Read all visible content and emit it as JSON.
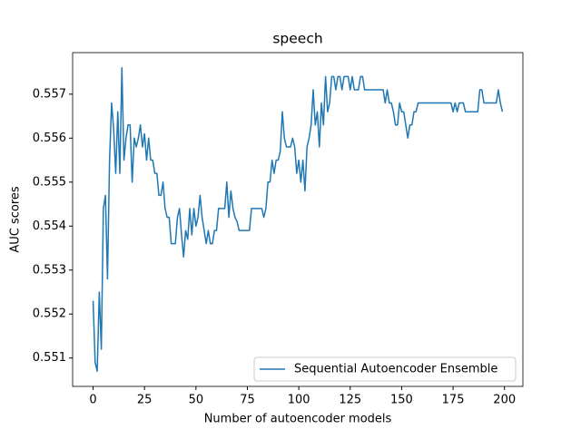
{
  "chart_data": {
    "type": "line",
    "title": "speech",
    "x_label": "Number of autoencoder models",
    "y_label": "AUC scores",
    "x": [
      0,
      1,
      2,
      3,
      4,
      5,
      6,
      7,
      8,
      9,
      10,
      11,
      12,
      13,
      14,
      15,
      16,
      17,
      18,
      19,
      20,
      21,
      22,
      23,
      24,
      25,
      26,
      27,
      28,
      29,
      30,
      31,
      32,
      33,
      34,
      35,
      36,
      37,
      38,
      39,
      40,
      41,
      42,
      43,
      44,
      45,
      46,
      47,
      48,
      49,
      50,
      51,
      52,
      53,
      54,
      55,
      56,
      57,
      58,
      59,
      60,
      61,
      62,
      63,
      64,
      65,
      66,
      67,
      68,
      69,
      70,
      71,
      72,
      73,
      74,
      75,
      76,
      77,
      78,
      79,
      80,
      81,
      82,
      83,
      84,
      85,
      86,
      87,
      88,
      89,
      90,
      91,
      92,
      93,
      94,
      95,
      96,
      97,
      98,
      99,
      100,
      101,
      102,
      103,
      104,
      105,
      106,
      107,
      108,
      109,
      110,
      111,
      112,
      113,
      114,
      115,
      116,
      117,
      118,
      119,
      120,
      121,
      122,
      123,
      124,
      125,
      126,
      127,
      128,
      129,
      130,
      131,
      132,
      133,
      134,
      135,
      136,
      137,
      138,
      139,
      140,
      141,
      142,
      143,
      144,
      145,
      146,
      147,
      148,
      149,
      150,
      151,
      152,
      153,
      154,
      155,
      156,
      157,
      158,
      159,
      160,
      161,
      162,
      163,
      164,
      165,
      166,
      167,
      168,
      169,
      170,
      171,
      172,
      173,
      174,
      175,
      176,
      177,
      178,
      179,
      180,
      181,
      182,
      183,
      184,
      185,
      186,
      187,
      188,
      189,
      190,
      191,
      192,
      193,
      194,
      195,
      196,
      197,
      198,
      199
    ],
    "series": [
      {
        "name": "Sequential Autoencoder Ensemble",
        "color": "#1f77b4",
        "values": [
          0.5523,
          0.5509,
          0.5507,
          0.5525,
          0.5512,
          0.5544,
          0.5547,
          0.5528,
          0.5555,
          0.5568,
          0.5562,
          0.5552,
          0.5566,
          0.5552,
          0.5576,
          0.5555,
          0.556,
          0.5563,
          0.5563,
          0.555,
          0.556,
          0.5558,
          0.556,
          0.5563,
          0.5558,
          0.5561,
          0.5555,
          0.556,
          0.5555,
          0.5555,
          0.5552,
          0.5552,
          0.5547,
          0.5547,
          0.555,
          0.5544,
          0.5542,
          0.5542,
          0.5536,
          0.5536,
          0.5536,
          0.5542,
          0.5544,
          0.5538,
          0.5533,
          0.5539,
          0.5537,
          0.5544,
          0.5538,
          0.5544,
          0.554,
          0.5542,
          0.5547,
          0.5542,
          0.5539,
          0.5536,
          0.5539,
          0.5536,
          0.5536,
          0.5539,
          0.5539,
          0.5544,
          0.5544,
          0.5544,
          0.5544,
          0.555,
          0.5542,
          0.5548,
          0.5544,
          0.5542,
          0.5541,
          0.5539,
          0.5539,
          0.5539,
          0.5539,
          0.5539,
          0.5539,
          0.5544,
          0.5544,
          0.5544,
          0.5544,
          0.5544,
          0.5544,
          0.5542,
          0.5544,
          0.555,
          0.555,
          0.5555,
          0.5552,
          0.5555,
          0.5555,
          0.5557,
          0.5566,
          0.556,
          0.5558,
          0.5558,
          0.5558,
          0.556,
          0.5558,
          0.5552,
          0.5555,
          0.555,
          0.5555,
          0.5548,
          0.5558,
          0.556,
          0.5563,
          0.5571,
          0.5563,
          0.5566,
          0.5558,
          0.5568,
          0.5563,
          0.5574,
          0.5566,
          0.5568,
          0.5574,
          0.5574,
          0.5571,
          0.5574,
          0.5574,
          0.5571,
          0.5574,
          0.5574,
          0.5574,
          0.5571,
          0.5574,
          0.5571,
          0.5571,
          0.5571,
          0.5574,
          0.5574,
          0.5571,
          0.5571,
          0.5571,
          0.5571,
          0.5571,
          0.5571,
          0.5571,
          0.5571,
          0.5571,
          0.5571,
          0.5568,
          0.5571,
          0.5568,
          0.5568,
          0.5566,
          0.5563,
          0.5563,
          0.5568,
          0.5566,
          0.5566,
          0.5563,
          0.556,
          0.5563,
          0.5563,
          0.5566,
          0.5566,
          0.5568,
          0.5568,
          0.5568,
          0.5568,
          0.5568,
          0.5568,
          0.5568,
          0.5568,
          0.5568,
          0.5568,
          0.5568,
          0.5568,
          0.5568,
          0.5568,
          0.5568,
          0.5568,
          0.5568,
          0.5566,
          0.5568,
          0.5566,
          0.5568,
          0.5568,
          0.5568,
          0.5566,
          0.5566,
          0.5566,
          0.5566,
          0.5566,
          0.5566,
          0.5566,
          0.5571,
          0.5571,
          0.5568,
          0.5568,
          0.5568,
          0.5568,
          0.5568,
          0.5568,
          0.5568,
          0.5571,
          0.5568,
          0.5566
        ]
      }
    ],
    "xlim": [
      -9.95,
      208.95
    ],
    "xticks": [
      0,
      25,
      50,
      75,
      100,
      125,
      150,
      175,
      200
    ],
    "ylim": [
      0.550355,
      0.557945
    ],
    "yticks": [
      0.551,
      0.552,
      0.553,
      0.554,
      0.555,
      0.556,
      0.557
    ],
    "legend": "lower right",
    "grid": false
  }
}
